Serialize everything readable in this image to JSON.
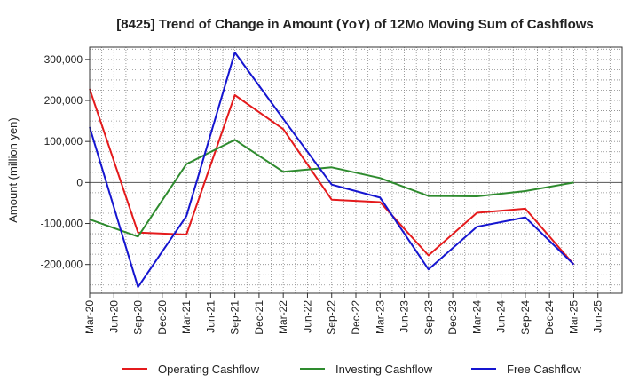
{
  "chart_data": {
    "type": "line",
    "title": "[8425]  Trend of Change in Amount (YoY) of 12Mo Moving Sum of Cashflows",
    "xlabel": "",
    "ylabel": "Amount (million yen)",
    "x_ticks": [
      "Mar-20",
      "Jun-20",
      "Sep-20",
      "Dec-20",
      "Mar-21",
      "Jun-21",
      "Sep-21",
      "Dec-21",
      "Mar-22",
      "Jun-22",
      "Sep-22",
      "Dec-22",
      "Mar-23",
      "Jun-23",
      "Sep-23",
      "Dec-23",
      "Mar-24",
      "Jun-24",
      "Sep-24",
      "Dec-24",
      "Mar-25",
      "Jun-25"
    ],
    "y_ticks": [
      300000,
      200000,
      100000,
      0,
      -100000,
      -200000
    ],
    "y_tick_labels": [
      "300,000",
      "200,000",
      "100,000",
      "0",
      "-100,000",
      "-200,000"
    ],
    "ylim": [
      -270000,
      330000
    ],
    "grid": true,
    "legend_position": "bottom",
    "series": [
      {
        "name": "Operating Cashflow",
        "color": "#e41a1c",
        "points": [
          [
            "Mar-20",
            228000
          ],
          [
            "Sep-20",
            -122000
          ],
          [
            "Mar-21",
            -127000
          ],
          [
            "Sep-21",
            213000
          ],
          [
            "Mar-22",
            130000
          ],
          [
            "Sep-22",
            -42000
          ],
          [
            "Mar-23",
            -48000
          ],
          [
            "Sep-23",
            -178000
          ],
          [
            "Mar-24",
            -74000
          ],
          [
            "Sep-24",
            -64000
          ],
          [
            "Mar-25",
            -200000
          ]
        ]
      },
      {
        "name": "Investing Cashflow",
        "color": "#2e8b2e",
        "points": [
          [
            "Mar-20",
            -90000
          ],
          [
            "Sep-20",
            -132000
          ],
          [
            "Mar-21",
            45000
          ],
          [
            "Sep-21",
            104000
          ],
          [
            "Mar-22",
            26000
          ],
          [
            "Sep-22",
            37000
          ],
          [
            "Mar-23",
            11000
          ],
          [
            "Sep-23",
            -33000
          ],
          [
            "Mar-24",
            -34000
          ],
          [
            "Sep-24",
            -21000
          ],
          [
            "Mar-25",
            0
          ]
        ]
      },
      {
        "name": "Free Cashflow",
        "color": "#1515d0",
        "points": [
          [
            "Mar-20",
            135000
          ],
          [
            "Sep-20",
            -255000
          ],
          [
            "Mar-21",
            -82000
          ],
          [
            "Sep-21",
            317000
          ],
          [
            "Mar-22",
            155000
          ],
          [
            "Sep-22",
            -5000
          ],
          [
            "Mar-23",
            -37000
          ],
          [
            "Sep-23",
            -212000
          ],
          [
            "Mar-24",
            -108000
          ],
          [
            "Sep-24",
            -85000
          ],
          [
            "Mar-25",
            -200000
          ]
        ]
      }
    ]
  }
}
